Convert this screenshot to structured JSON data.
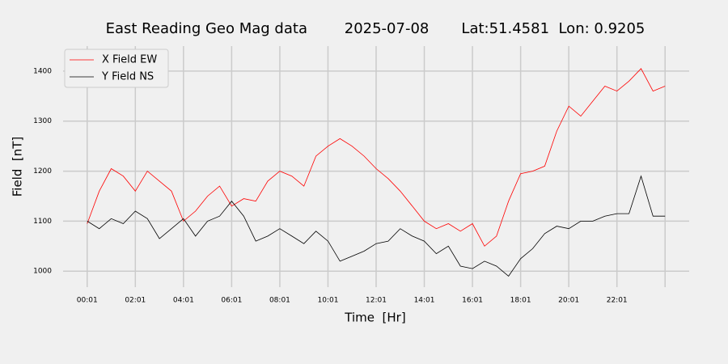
{
  "chart_data": {
    "type": "line",
    "title": "East Reading Geo Mag data        2025-07-08       Lat:51.4581  Lon: 0.9205",
    "xlabel": "Time  [Hr]",
    "ylabel": "Field  [nT]",
    "x": [
      0,
      0.5,
      1,
      1.5,
      2,
      2.5,
      3,
      3.5,
      4,
      4.5,
      5,
      5.5,
      6,
      6.5,
      7,
      7.5,
      8,
      8.5,
      9,
      9.5,
      10,
      10.5,
      11,
      11.5,
      12,
      12.5,
      13,
      13.5,
      14,
      14.5,
      15,
      15.5,
      16,
      16.5,
      17,
      17.5,
      18,
      18.5,
      19,
      19.5,
      20,
      20.5,
      21,
      21.5,
      22,
      22.5,
      23,
      23.5,
      24
    ],
    "series": [
      {
        "name": "X Field EW",
        "color": "#ff0000",
        "values": [
          1095,
          1160,
          1205,
          1190,
          1160,
          1200,
          1180,
          1160,
          1100,
          1120,
          1150,
          1170,
          1130,
          1145,
          1140,
          1180,
          1200,
          1190,
          1170,
          1230,
          1250,
          1265,
          1250,
          1230,
          1205,
          1185,
          1160,
          1130,
          1100,
          1085,
          1095,
          1080,
          1095,
          1050,
          1070,
          1140,
          1195,
          1200,
          1210,
          1280,
          1330,
          1310,
          1340,
          1370,
          1360,
          1380,
          1405,
          1360,
          1370
        ]
      },
      {
        "name": "Y Field NS",
        "color": "#000000",
        "values": [
          1100,
          1085,
          1105,
          1095,
          1120,
          1105,
          1065,
          1085,
          1105,
          1070,
          1100,
          1110,
          1140,
          1110,
          1060,
          1070,
          1085,
          1070,
          1055,
          1080,
          1060,
          1020,
          1030,
          1040,
          1055,
          1060,
          1085,
          1070,
          1060,
          1035,
          1050,
          1010,
          1005,
          1020,
          1010,
          990,
          1025,
          1045,
          1075,
          1090,
          1085,
          1100,
          1100,
          1110,
          1115,
          1115,
          1190,
          1110,
          1110
        ]
      }
    ],
    "xlim": [
      -1,
      25
    ],
    "xticks": [
      {
        "value": 0,
        "label": "00:01"
      },
      {
        "value": 2,
        "label": "02:01"
      },
      {
        "value": 4,
        "label": "04:01"
      },
      {
        "value": 6,
        "label": "06:01"
      },
      {
        "value": 8,
        "label": "08:01"
      },
      {
        "value": 10,
        "label": "10:01"
      },
      {
        "value": 12,
        "label": "12:01"
      },
      {
        "value": 14,
        "label": "14:01"
      },
      {
        "value": 16,
        "label": "16:01"
      },
      {
        "value": 18,
        "label": "18:01"
      },
      {
        "value": 20,
        "label": "20:01"
      },
      {
        "value": 22,
        "label": "22:01"
      },
      {
        "value": 24,
        "label": null
      }
    ],
    "ylim": [
      968,
      1450
    ],
    "yticks": [
      1000,
      1100,
      1200,
      1300,
      1400
    ],
    "grid": true,
    "legend": "upper left"
  }
}
